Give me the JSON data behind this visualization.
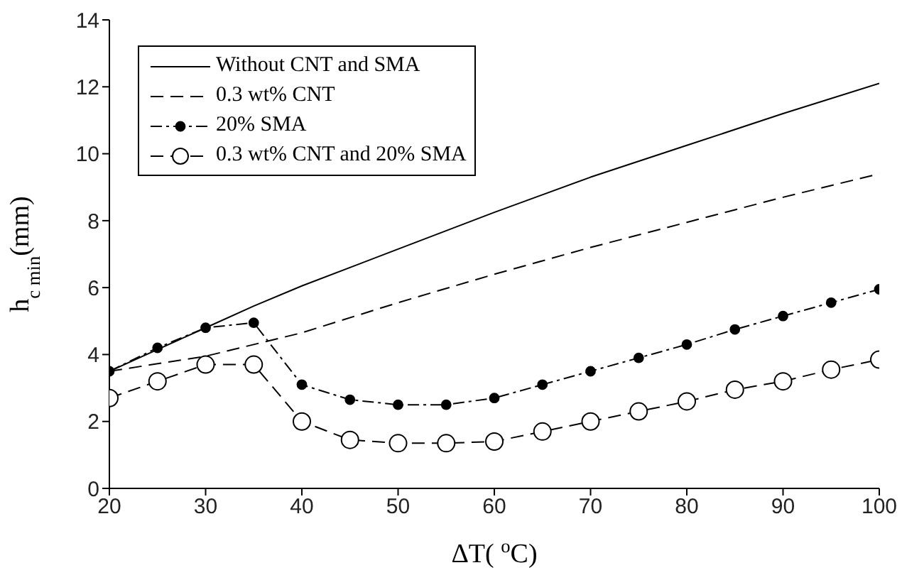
{
  "chart_data": {
    "type": "line",
    "xlabel": "ΔT( $^{o}$C)",
    "ylabel": "h$_{c min}$(mm)",
    "xlim": [
      20,
      100
    ],
    "xticks": [
      20,
      30,
      40,
      50,
      60,
      70,
      80,
      90,
      100
    ],
    "ylim": [
      0,
      14
    ],
    "yticks": [
      0,
      2,
      4,
      6,
      8,
      10,
      12,
      14
    ],
    "legend": "top left",
    "series": [
      {
        "name": "Without CNT and SMA",
        "color": "#000000",
        "line_style": "solid",
        "marker": "none",
        "x": [
          20,
          25,
          30,
          35,
          40,
          50,
          60,
          70,
          80,
          90,
          100
        ],
        "values": [
          3.5,
          4.15,
          4.8,
          5.45,
          6.05,
          7.15,
          8.25,
          9.3,
          10.25,
          11.2,
          12.1
        ]
      },
      {
        "name": "0.3 wt% CNT",
        "color": "#000000",
        "line_style": "dashed",
        "marker": "none",
        "x": [
          20,
          30,
          40,
          50,
          60,
          70,
          80,
          90,
          100
        ],
        "values": [
          3.5,
          3.95,
          4.65,
          5.55,
          6.4,
          7.2,
          7.95,
          8.7,
          9.4
        ]
      },
      {
        "name": "20% SMA",
        "color": "#000000",
        "line_style": "dashdot",
        "marker": "circle",
        "x": [
          20,
          25,
          30,
          35,
          40,
          45,
          50,
          55,
          60,
          65,
          70,
          75,
          80,
          85,
          90,
          95,
          100
        ],
        "values": [
          3.5,
          4.2,
          4.8,
          4.95,
          3.1,
          2.65,
          2.5,
          2.5,
          2.7,
          3.1,
          3.5,
          3.9,
          4.3,
          4.75,
          5.15,
          5.55,
          5.95
        ]
      },
      {
        "name": "0.3 wt% CNT and 20% SMA",
        "color": "#000000",
        "line_style": "dashed",
        "marker": "circle",
        "x": [
          20,
          25,
          30,
          35,
          40,
          45,
          50,
          55,
          60,
          65,
          70,
          75,
          80,
          85,
          90,
          95,
          100
        ],
        "values": [
          2.7,
          3.2,
          3.7,
          3.7,
          2.0,
          1.45,
          1.35,
          1.35,
          1.4,
          1.7,
          2.0,
          2.3,
          2.6,
          2.95,
          3.2,
          3.55,
          3.85
        ]
      }
    ]
  }
}
